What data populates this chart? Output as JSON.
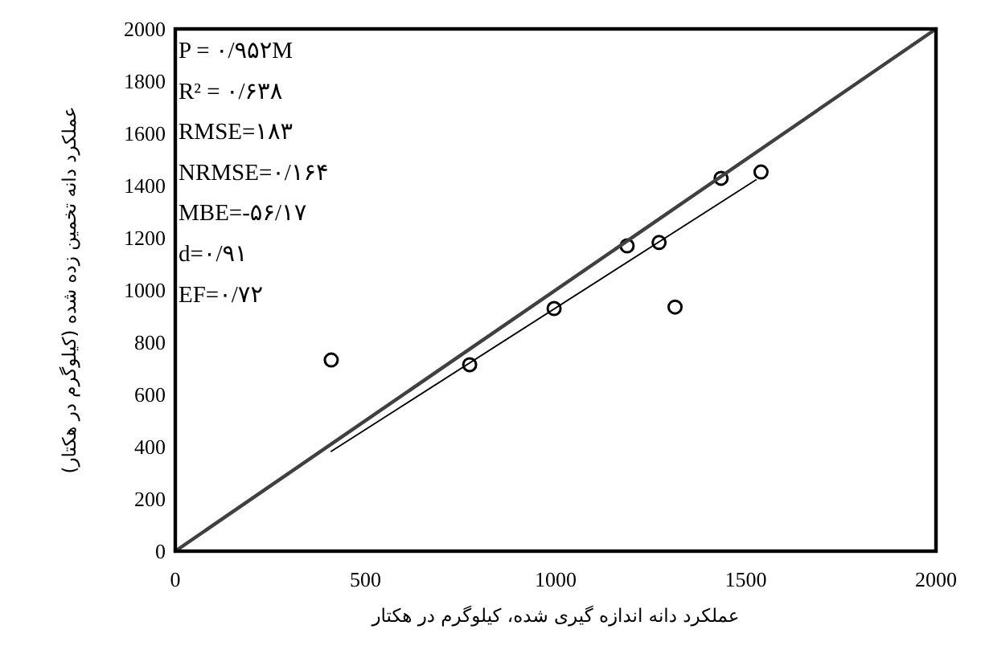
{
  "chart_data": {
    "type": "scatter",
    "xlabel": "عملکرد دانه اندازه گیری شده، کیلوگرم در هکتار",
    "ylabel": "عملکرد دانه تخمین زده شده (کیلوگرم در هکتار)",
    "xlim": [
      0,
      2000
    ],
    "ylim": [
      0,
      2000
    ],
    "xticks": [
      0,
      500,
      1000,
      1500,
      2000
    ],
    "yticks": [
      0,
      200,
      400,
      600,
      800,
      1000,
      1200,
      1400,
      1600,
      1800,
      2000
    ],
    "annotations": [
      "P = ۰/۹۵۲M",
      "R² = ۰/۶۳۸",
      "RMSE=۱۸۳",
      "NRMSE=۰/۱۶۴",
      "MBE=-۵۶/۱۷",
      "d=۰/۹۱",
      "EF=۰/۷۲"
    ],
    "series": [
      {
        "color": "#000000",
        "marker": "circle",
        "x": [
          410,
          774,
          996,
          1188,
          1272,
          1314,
          1435,
          1540
        ],
        "values": [
          732,
          714,
          929,
          1169,
          1182,
          935,
          1428,
          1452
        ]
      },
      {
        "type": "line",
        "color": "#000000",
        "x": [
          410,
          1527
        ],
        "values": [
          382,
          1422
        ]
      },
      {
        "type": "line",
        "color": "#404040",
        "x": [
          0,
          2000
        ],
        "values": [
          0,
          2000
        ]
      }
    ]
  }
}
